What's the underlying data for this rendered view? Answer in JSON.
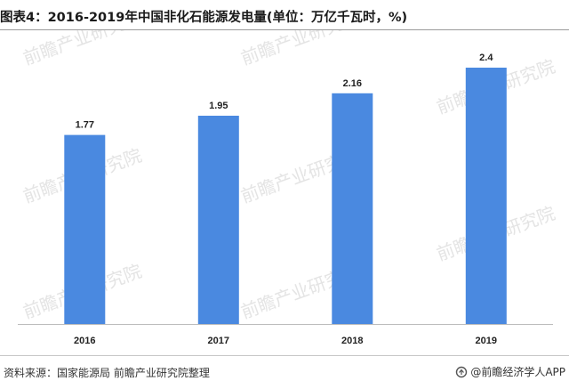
{
  "title": "图表4：2016-2019年中国非化石能源发电量(单位：万亿千瓦时，%)",
  "source": "资料来源：国家能源局 前瞻产业研究院整理",
  "brand": "@前瞻经济学人APP",
  "watermark_text": "前瞻产业研究院",
  "colors": {
    "bar": "#4a89e0",
    "axis": "#bdbdbd"
  },
  "chart_data": {
    "type": "bar",
    "categories": [
      "2016",
      "2017",
      "2018",
      "2019"
    ],
    "values": [
      1.77,
      1.95,
      2.16,
      2.4
    ],
    "value_labels": [
      "1.77",
      "1.95",
      "2.16",
      "2.4"
    ],
    "title": "图表4：2016-2019年中国非化石能源发电量(单位：万亿千瓦时，%)",
    "xlabel": "",
    "ylabel": "",
    "ylim": [
      0,
      2.7
    ],
    "grid": false,
    "legend": "none"
  }
}
